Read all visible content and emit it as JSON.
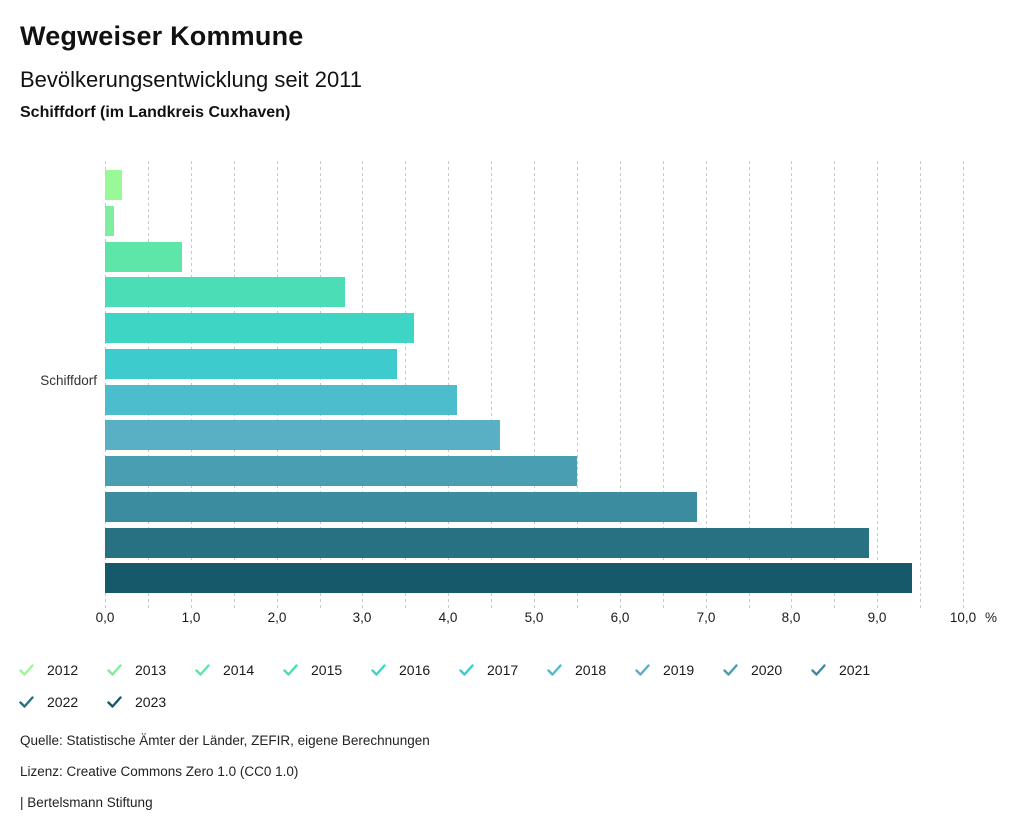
{
  "header": {
    "title": "Wegweiser Kommune",
    "subtitle": "Bevölkerungsentwicklung seit 2011",
    "region": "Schiffdorf (im Landkreis Cuxhaven)"
  },
  "chart_data": {
    "type": "bar",
    "orientation": "horizontal",
    "category_label": "Schiffdorf",
    "unit_label": "%",
    "xlim": [
      0,
      10
    ],
    "gridline_step": 0.5,
    "x_tick_step": 1.0,
    "x_tick_labels": [
      "0,0",
      "1,0",
      "2,0",
      "3,0",
      "4,0",
      "5,0",
      "6,0",
      "7,0",
      "8,0",
      "9,0",
      "10,0"
    ],
    "grid": "dashed-vertical",
    "legend_position": "bottom",
    "series": [
      {
        "name": "2012",
        "value": 0.2,
        "color": "#99f996"
      },
      {
        "name": "2013",
        "value": 0.1,
        "color": "#7eed9d"
      },
      {
        "name": "2014",
        "value": 0.9,
        "color": "#5ee6a9"
      },
      {
        "name": "2015",
        "value": 2.8,
        "color": "#4addb6"
      },
      {
        "name": "2016",
        "value": 3.6,
        "color": "#3ed5c4"
      },
      {
        "name": "2017",
        "value": 3.4,
        "color": "#3dcbce"
      },
      {
        "name": "2018",
        "value": 4.1,
        "color": "#4cbdcc"
      },
      {
        "name": "2019",
        "value": 4.6,
        "color": "#59b0c5"
      },
      {
        "name": "2020",
        "value": 5.5,
        "color": "#4a9eb2"
      },
      {
        "name": "2021",
        "value": 6.9,
        "color": "#3a8c9e"
      },
      {
        "name": "2022",
        "value": 8.9,
        "color": "#277183"
      },
      {
        "name": "2023",
        "value": 9.4,
        "color": "#16596b"
      }
    ]
  },
  "footer": {
    "source": "Quelle: Statistische Ämter der Länder, ZEFIR, eigene Berechnungen",
    "license": "Lizenz: Creative Commons Zero 1.0 (CC0 1.0)",
    "attribution": "| Bertelsmann Stiftung"
  }
}
